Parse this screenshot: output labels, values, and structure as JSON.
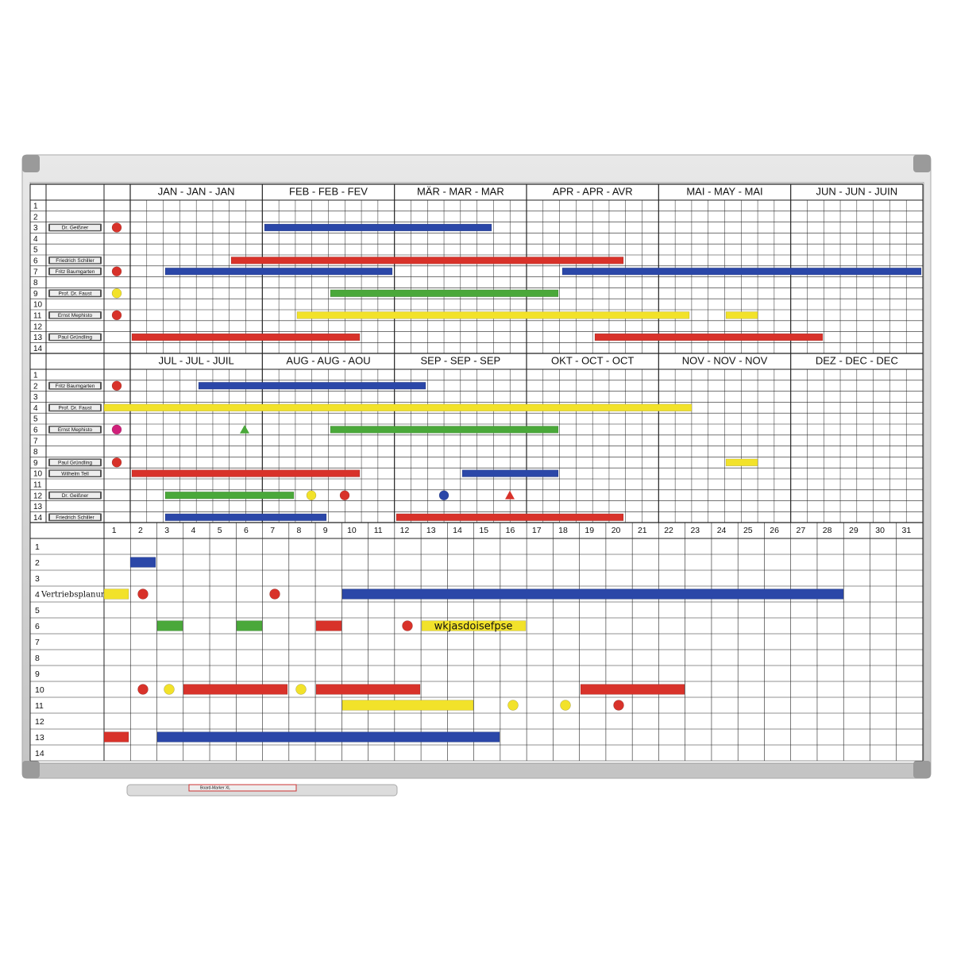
{
  "board": {
    "sections": [
      {
        "months": [
          "JAN - JAN - JAN",
          "FEB - FEB - FEV",
          "MÄR - MAR - MAR",
          "APR - APR - AVR",
          "MAI - MAY - MAI",
          "JUN - JUN - JUIN"
        ],
        "rows": [
          1,
          2,
          3,
          4,
          5,
          6,
          7,
          8,
          9,
          10,
          11,
          12,
          13,
          14
        ],
        "names": [
          null,
          null,
          "Dr. Geißner",
          null,
          null,
          "Friedrich Schiller",
          "Fritz Baumgarten",
          null,
          "Prof. Dr. Faust",
          null,
          "Ernst Mephisto",
          null,
          "Paul Gründling",
          null
        ]
      },
      {
        "months": [
          "JUL - JUL - JUIL",
          "AUG - AUG - AOU",
          "SEP - SEP - SEP",
          "OKT - OCT - OCT",
          "NOV - NOV - NOV",
          "DEZ - DEC - DEC"
        ],
        "rows": [
          1,
          2,
          3,
          4,
          5,
          6,
          7,
          8,
          9,
          10,
          11,
          12,
          13,
          14
        ],
        "names": [
          null,
          "Fritz Baumgarten",
          null,
          "Prof. Dr. Faust",
          null,
          "Ernst Mephisto",
          null,
          null,
          "Paul Gründling",
          "Wilhelm Tell",
          null,
          "Dr. Geißner",
          null,
          "Friedrich Schiller"
        ]
      }
    ],
    "days": [
      1,
      2,
      3,
      4,
      5,
      6,
      7,
      8,
      9,
      10,
      11,
      12,
      13,
      14,
      15,
      16,
      17,
      18,
      19,
      20,
      21,
      22,
      23,
      24,
      25,
      26,
      27,
      28,
      29,
      30,
      31
    ],
    "bottom": {
      "rows": [
        1,
        2,
        3,
        4,
        5,
        6,
        7,
        8,
        9,
        10,
        11,
        12,
        13,
        14
      ],
      "row_label": "Vertriebsplanung",
      "note": "wkjasdoisefpse"
    },
    "marker": "Board-Marker XL"
  }
}
